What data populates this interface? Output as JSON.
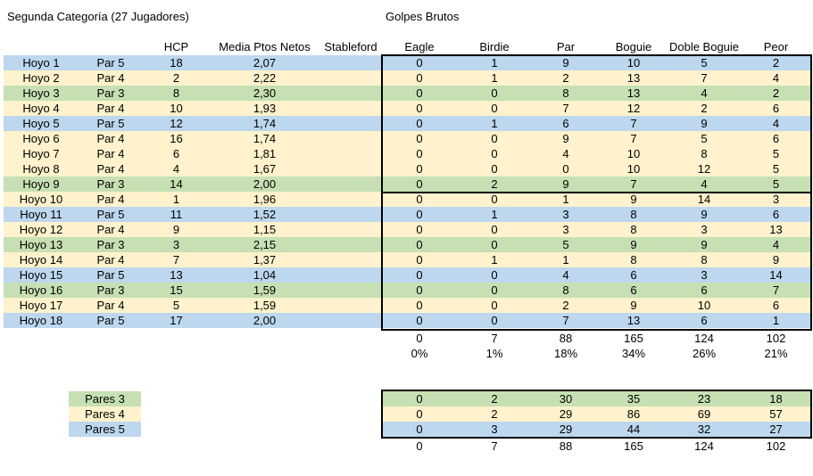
{
  "titles": {
    "left": "Segunda Categoría (27 Jugadores)",
    "right": "Golpes Brutos"
  },
  "headers": {
    "hcp": "HCP",
    "media": "Media Ptos Netos",
    "stableford": "Stableford",
    "stats": [
      "Eagle",
      "Birdie",
      "Par",
      "Boguie",
      "Doble Boguie",
      "Peor"
    ]
  },
  "colors": {
    "par3": "#C6E0B4",
    "par4": "#FFF2CC",
    "par5": "#BDD7EE"
  },
  "rows": [
    {
      "hoyo": "Hoyo 1",
      "par": "Par 5",
      "type": "par5",
      "hcp": "18",
      "media": "2,07",
      "stableford": "",
      "stats": [
        "0",
        "1",
        "9",
        "10",
        "5",
        "2"
      ]
    },
    {
      "hoyo": "Hoyo 2",
      "par": "Par 4",
      "type": "par4",
      "hcp": "2",
      "media": "2,22",
      "stableford": "",
      "stats": [
        "0",
        "1",
        "2",
        "13",
        "7",
        "4"
      ]
    },
    {
      "hoyo": "Hoyo 3",
      "par": "Par 3",
      "type": "par3",
      "hcp": "8",
      "media": "2,30",
      "stableford": "",
      "stats": [
        "0",
        "0",
        "8",
        "13",
        "4",
        "2"
      ]
    },
    {
      "hoyo": "Hoyo 4",
      "par": "Par 4",
      "type": "par4",
      "hcp": "10",
      "media": "1,93",
      "stableford": "",
      "stats": [
        "0",
        "0",
        "7",
        "12",
        "2",
        "6"
      ]
    },
    {
      "hoyo": "Hoyo 5",
      "par": "Par 5",
      "type": "par5",
      "hcp": "12",
      "media": "1,74",
      "stableford": "",
      "stats": [
        "0",
        "1",
        "6",
        "7",
        "9",
        "4"
      ]
    },
    {
      "hoyo": "Hoyo 6",
      "par": "Par 4",
      "type": "par4",
      "hcp": "16",
      "media": "1,74",
      "stableford": "",
      "stats": [
        "0",
        "0",
        "9",
        "7",
        "5",
        "6"
      ]
    },
    {
      "hoyo": "Hoyo 7",
      "par": "Par 4",
      "type": "par4",
      "hcp": "6",
      "media": "1,81",
      "stableford": "",
      "stats": [
        "0",
        "0",
        "4",
        "10",
        "8",
        "5"
      ]
    },
    {
      "hoyo": "Hoyo 8",
      "par": "Par 4",
      "type": "par4",
      "hcp": "4",
      "media": "1,67",
      "stableford": "",
      "stats": [
        "0",
        "0",
        "0",
        "10",
        "12",
        "5"
      ]
    },
    {
      "hoyo": "Hoyo 9",
      "par": "Par 3",
      "type": "par3",
      "hcp": "14",
      "media": "2,00",
      "stableford": "",
      "stats": [
        "0",
        "2",
        "9",
        "7",
        "4",
        "5"
      ]
    },
    {
      "hoyo": "Hoyo 10",
      "par": "Par 4",
      "type": "par4",
      "hcp": "1",
      "media": "1,96",
      "stableford": "",
      "stats": [
        "0",
        "0",
        "1",
        "9",
        "14",
        "3"
      ]
    },
    {
      "hoyo": "Hoyo 11",
      "par": "Par 5",
      "type": "par5",
      "hcp": "11",
      "media": "1,52",
      "stableford": "",
      "stats": [
        "0",
        "1",
        "3",
        "8",
        "9",
        "6"
      ]
    },
    {
      "hoyo": "Hoyo 12",
      "par": "Par 4",
      "type": "par4",
      "hcp": "9",
      "media": "1,15",
      "stableford": "",
      "stats": [
        "0",
        "0",
        "3",
        "8",
        "3",
        "13"
      ]
    },
    {
      "hoyo": "Hoyo 13",
      "par": "Par 3",
      "type": "par3",
      "hcp": "3",
      "media": "2,15",
      "stableford": "",
      "stats": [
        "0",
        "0",
        "5",
        "9",
        "9",
        "4"
      ]
    },
    {
      "hoyo": "Hoyo 14",
      "par": "Par 4",
      "type": "par4",
      "hcp": "7",
      "media": "1,37",
      "stableford": "",
      "stats": [
        "0",
        "1",
        "1",
        "8",
        "8",
        "9"
      ]
    },
    {
      "hoyo": "Hoyo 15",
      "par": "Par 5",
      "type": "par5",
      "hcp": "13",
      "media": "1,04",
      "stableford": "",
      "stats": [
        "0",
        "0",
        "4",
        "6",
        "3",
        "14"
      ]
    },
    {
      "hoyo": "Hoyo 16",
      "par": "Par 3",
      "type": "par3",
      "hcp": "15",
      "media": "1,59",
      "stableford": "",
      "stats": [
        "0",
        "0",
        "8",
        "6",
        "6",
        "7"
      ]
    },
    {
      "hoyo": "Hoyo 17",
      "par": "Par 4",
      "type": "par4",
      "hcp": "5",
      "media": "1,59",
      "stableford": "",
      "stats": [
        "0",
        "0",
        "2",
        "9",
        "10",
        "6"
      ]
    },
    {
      "hoyo": "Hoyo 18",
      "par": "Par 5",
      "type": "par5",
      "hcp": "17",
      "media": "2,00",
      "stableford": "",
      "stats": [
        "0",
        "0",
        "7",
        "13",
        "6",
        "1"
      ]
    }
  ],
  "totals": {
    "values": [
      "0",
      "7",
      "88",
      "165",
      "124",
      "102"
    ],
    "percents": [
      "0%",
      "1%",
      "18%",
      "34%",
      "26%",
      "21%"
    ]
  },
  "pares_summary": {
    "labels": [
      "Pares 3",
      "Pares 4",
      "Pares 5"
    ],
    "types": [
      "par3",
      "par4",
      "par5"
    ],
    "rows": [
      [
        "0",
        "2",
        "30",
        "35",
        "23",
        "18"
      ],
      [
        "0",
        "2",
        "29",
        "86",
        "69",
        "57"
      ],
      [
        "0",
        "3",
        "29",
        "44",
        "32",
        "27"
      ]
    ],
    "total": [
      "0",
      "7",
      "88",
      "165",
      "124",
      "102"
    ]
  }
}
